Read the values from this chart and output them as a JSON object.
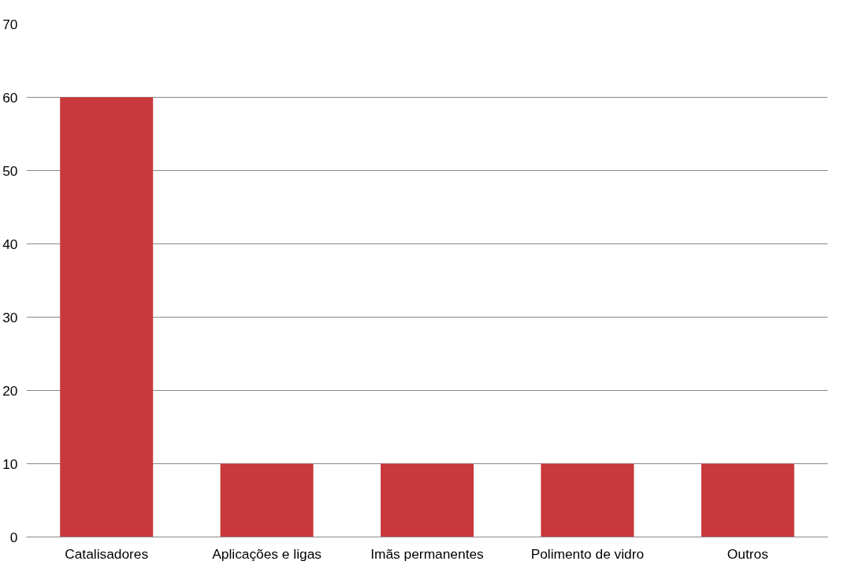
{
  "chart_data": {
    "type": "bar",
    "categories": [
      "Catalisadores",
      "Aplicações e ligas",
      "Imãs permanentes",
      "Polimento de vidro",
      "Outros"
    ],
    "values": [
      60,
      10,
      10,
      10,
      10
    ],
    "color": "#c9383a",
    "ylim": [
      0,
      70
    ],
    "yticks": [
      0,
      10,
      20,
      30,
      40,
      50,
      60,
      70
    ],
    "grid": "y"
  }
}
